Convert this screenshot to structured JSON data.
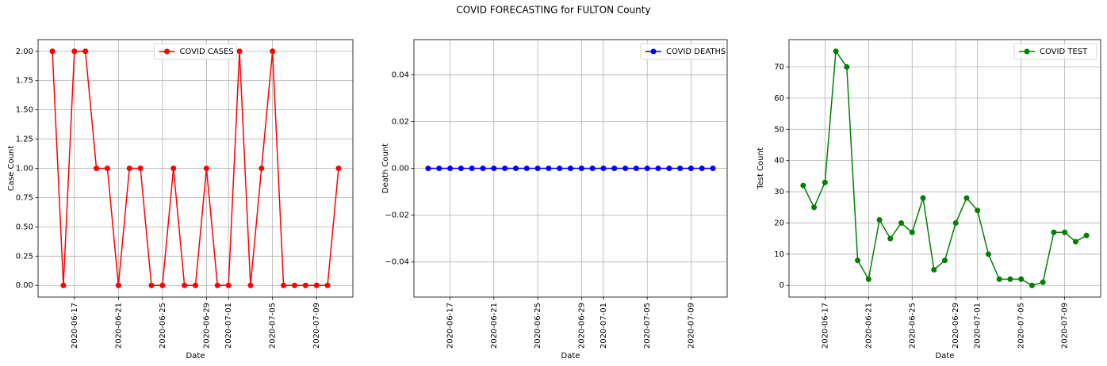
{
  "title": "COVID FORECASTING for FULTON County",
  "chart_data": [
    {
      "type": "line",
      "xlabel": "Date",
      "ylabel": "Case Count",
      "legend": "upper center",
      "grid": true,
      "x": [
        "2020-06-15",
        "2020-06-16",
        "2020-06-17",
        "2020-06-18",
        "2020-06-19",
        "2020-06-20",
        "2020-06-21",
        "2020-06-22",
        "2020-06-23",
        "2020-06-24",
        "2020-06-25",
        "2020-06-26",
        "2020-06-27",
        "2020-06-28",
        "2020-06-29",
        "2020-06-30",
        "2020-07-01",
        "2020-07-02",
        "2020-07-03",
        "2020-07-04",
        "2020-07-05",
        "2020-07-06",
        "2020-07-07",
        "2020-07-08",
        "2020-07-09",
        "2020-07-10",
        "2020-07-11"
      ],
      "series": [
        {
          "name": "COVID CASES",
          "color": "#ff0000",
          "values": [
            2,
            0,
            2,
            2,
            1,
            1,
            0,
            1,
            1,
            0,
            0,
            1,
            0,
            0,
            1,
            0,
            0,
            2,
            0,
            1,
            2,
            0,
            0,
            0,
            0,
            0,
            1
          ]
        }
      ],
      "xlim": [
        "2020-06-13T16:48:00Z",
        "2020-07-12T07:12:00Z"
      ],
      "xticks": [
        "2020-06-17",
        "2020-06-21",
        "2020-06-25",
        "2020-06-29",
        "2020-07-01",
        "2020-07-05",
        "2020-07-09"
      ],
      "ylim": [
        -0.1,
        2.1
      ],
      "yticks": [
        {
          "value": 0,
          "label": "0.00"
        },
        0.25,
        {
          "value": 0.5,
          "label": "0.50"
        },
        0.75,
        {
          "value": 1,
          "label": "1.00"
        },
        1.25,
        {
          "value": 1.5,
          "label": "1.50"
        },
        1.75,
        {
          "value": 2,
          "label": "2.00"
        }
      ]
    },
    {
      "type": "line",
      "xlabel": "Date",
      "ylabel": "Death Count",
      "legend": "upper right",
      "grid": true,
      "x": [
        "2020-06-15",
        "2020-06-16",
        "2020-06-17",
        "2020-06-18",
        "2020-06-19",
        "2020-06-20",
        "2020-06-21",
        "2020-06-22",
        "2020-06-23",
        "2020-06-24",
        "2020-06-25",
        "2020-06-26",
        "2020-06-27",
        "2020-06-28",
        "2020-06-29",
        "2020-06-30",
        "2020-07-01",
        "2020-07-02",
        "2020-07-03",
        "2020-07-04",
        "2020-07-05",
        "2020-07-06",
        "2020-07-07",
        "2020-07-08",
        "2020-07-09",
        "2020-07-10",
        "2020-07-11"
      ],
      "series": [
        {
          "name": "COVID DEATHS",
          "color": "#0000ff",
          "values": [
            0,
            0,
            0,
            0,
            0,
            0,
            0,
            0,
            0,
            0,
            0,
            0,
            0,
            0,
            0,
            0,
            0,
            0,
            0,
            0,
            0,
            0,
            0,
            0,
            0,
            0,
            0
          ]
        }
      ],
      "xlim": [
        "2020-06-13T16:48:00Z",
        "2020-07-12T07:12:00Z"
      ],
      "xticks": [
        "2020-06-17",
        "2020-06-21",
        "2020-06-25",
        "2020-06-29",
        "2020-07-01",
        "2020-07-05",
        "2020-07-09"
      ],
      "ylim": [
        -0.055,
        0.055
      ],
      "yticks": [
        {
          "value": -0.04,
          "label": "−0.04"
        },
        {
          "value": -0.02,
          "label": "−0.02"
        },
        {
          "value": 0,
          "label": "0.00"
        },
        0.02,
        0.04
      ]
    },
    {
      "type": "line",
      "xlabel": "Date",
      "ylabel": "Test Count",
      "legend": "upper right",
      "grid": true,
      "x": [
        "2020-06-15",
        "2020-06-16",
        "2020-06-17",
        "2020-06-18",
        "2020-06-19",
        "2020-06-20",
        "2020-06-21",
        "2020-06-22",
        "2020-06-23",
        "2020-06-24",
        "2020-06-25",
        "2020-06-26",
        "2020-06-27",
        "2020-06-28",
        "2020-06-29",
        "2020-06-30",
        "2020-07-01",
        "2020-07-02",
        "2020-07-03",
        "2020-07-04",
        "2020-07-05",
        "2020-07-06",
        "2020-07-07",
        "2020-07-08",
        "2020-07-09",
        "2020-07-10",
        "2020-07-11"
      ],
      "series": [
        {
          "name": "COVID TEST",
          "color": "#008000",
          "values": [
            32,
            25,
            33,
            75,
            70,
            8,
            2,
            21,
            15,
            20,
            17,
            28,
            5,
            8,
            20,
            28,
            24,
            10,
            2,
            2,
            2,
            0,
            1,
            17,
            17,
            14,
            16
          ]
        }
      ],
      "xlim": [
        "2020-06-13T16:48:00Z",
        "2020-07-12T07:12:00Z"
      ],
      "xticks": [
        "2020-06-17",
        "2020-06-21",
        "2020-06-25",
        "2020-06-29",
        "2020-07-01",
        "2020-07-05",
        "2020-07-09"
      ],
      "ylim": [
        -3.75,
        78.75
      ],
      "yticks": [
        0,
        10,
        20,
        30,
        40,
        50,
        60,
        70
      ]
    }
  ]
}
